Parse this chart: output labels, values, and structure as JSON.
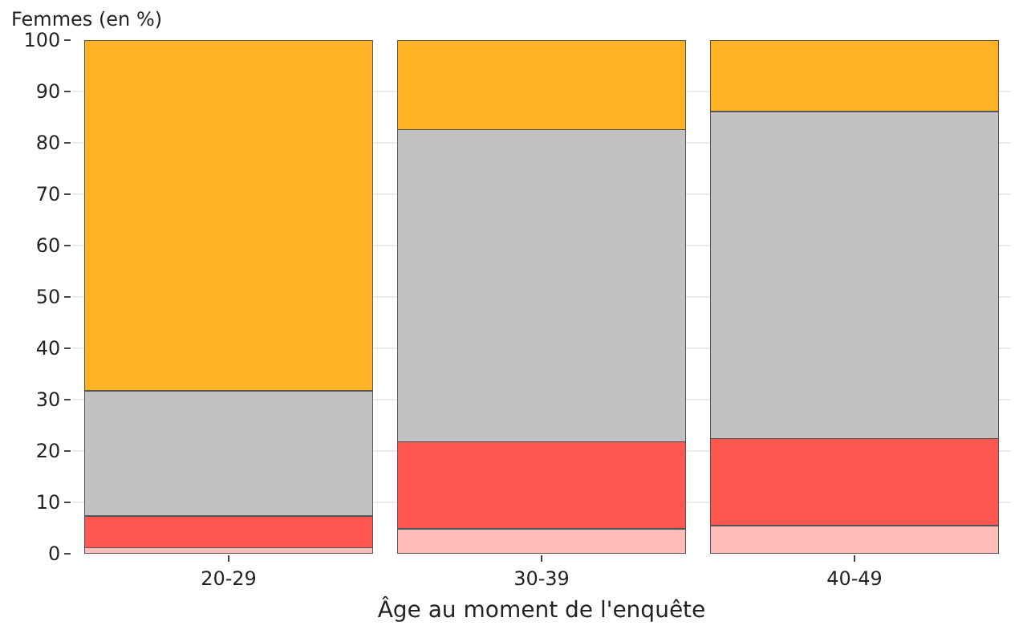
{
  "chart_data": {
    "type": "bar",
    "stacked": true,
    "ylabel": "Femmes (en %)",
    "xlabel": "Âge au moment de l'enquête",
    "categories": [
      "20-29",
      "30-39",
      "40-49"
    ],
    "series": [
      {
        "color": "#ffbcb9",
        "values": [
          1.2,
          4.8,
          5.5
        ]
      },
      {
        "color": "#ff5650",
        "values": [
          6.1,
          17,
          16.9
        ]
      },
      {
        "color": "#c2c2c2",
        "values": [
          24.4,
          60.8,
          63.7
        ]
      },
      {
        "color": "#ffb224",
        "values": [
          68.3,
          17.4,
          13.9
        ]
      }
    ],
    "ylim": [
      0,
      100
    ],
    "yticks": [
      0,
      10,
      20,
      30,
      40,
      50,
      60,
      70,
      80,
      90,
      100
    ],
    "grid": "y"
  }
}
